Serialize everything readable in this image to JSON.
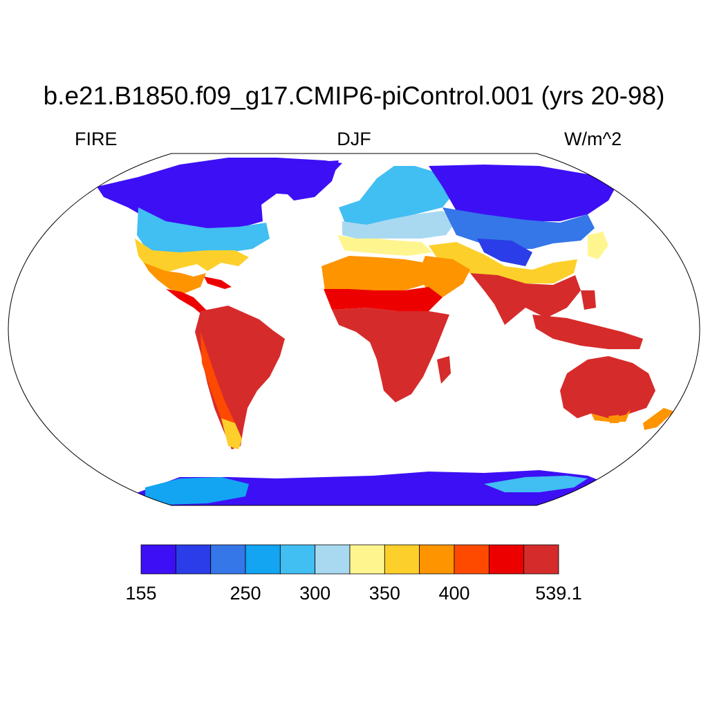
{
  "title": "b.e21.B1850.f09_g17.CMIP6-piControl.001 (yrs 20-98)",
  "left_label": "FIRE",
  "center_label": "DJF",
  "right_label": "W/m^2",
  "colorbar": {
    "colors": [
      "#3d0ff5",
      "#2a3de8",
      "#3576e8",
      "#13a4f2",
      "#41bef2",
      "#a9d9f1",
      "#fff58f",
      "#fdcf2a",
      "#fe9400",
      "#fe4a00",
      "#ed0000",
      "#d62b2b"
    ],
    "labels": [
      {
        "text": "155",
        "index": 0
      },
      {
        "text": "250",
        "index": 3
      },
      {
        "text": "300",
        "index": 5
      },
      {
        "text": "350",
        "index": 7
      },
      {
        "text": "400",
        "index": 9
      },
      {
        "text": "539.1",
        "index": 12
      }
    ]
  }
}
